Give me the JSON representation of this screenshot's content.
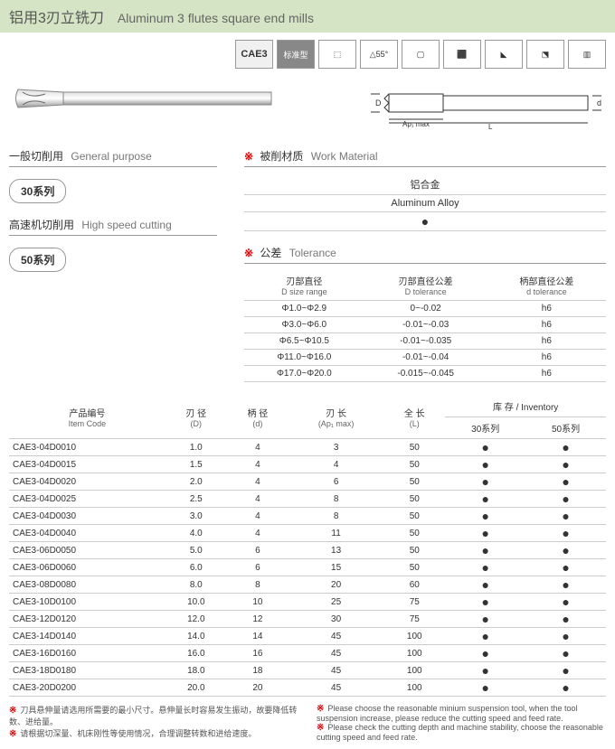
{
  "header": {
    "cn": "铝用3刃立铣刀",
    "en": "Aluminum 3 flutes square end mills"
  },
  "badges": [
    "CAE3",
    "标准型",
    "⬚",
    "△55°",
    "▢",
    "⬛",
    "◣",
    "⬔",
    "▥"
  ],
  "workMaterial": {
    "titleCn": "被削材质",
    "titleEn": "Work Material",
    "matCn": "铝合金",
    "matEn": "Aluminum Alloy"
  },
  "purpose": {
    "gpCn": "一般切削用",
    "gpEn": "General purpose",
    "gpSeries": "30系列",
    "hsCn": "高速机切削用",
    "hsEn": "High speed cutting",
    "hsSeries": "50系列"
  },
  "tolerance": {
    "titleCn": "公差",
    "titleEn": "Tolerance",
    "h1Cn": "刃部直径",
    "h1En": "D size range",
    "h2Cn": "刃部直径公差",
    "h2En": "D tolerance",
    "h3Cn": "柄部直径公差",
    "h3En": "d tolerance",
    "rows": [
      [
        "Φ1.0~Φ2.9",
        "0~-0.02",
        "h6"
      ],
      [
        "Φ3.0~Φ6.0",
        "-0.01~-0.03",
        "h6"
      ],
      [
        "Φ6.5~Φ10.5",
        "-0.01~-0.035",
        "h6"
      ],
      [
        "Φ11.0~Φ16.0",
        "-0.01~-0.04",
        "h6"
      ],
      [
        "Φ17.0~Φ20.0",
        "-0.015~-0.045",
        "h6"
      ]
    ]
  },
  "mainTable": {
    "h": {
      "codeCn": "产品编号",
      "codeEn": "Item Code",
      "dCn": "刃 径",
      "dEn": "(D)",
      "d2Cn": "柄 径",
      "d2En": "(d)",
      "apCn": "刃 长",
      "apEn": "(Ap₁ max)",
      "lCn": "全 长",
      "lEn": "(L)",
      "invCn": "库 存",
      "invEn": "Inventory",
      "s30": "30系列",
      "s50": "50系列"
    },
    "rows": [
      [
        "CAE3-04D0010",
        "1.0",
        "4",
        "3",
        "50",
        "●",
        "●"
      ],
      [
        "CAE3-04D0015",
        "1.5",
        "4",
        "4",
        "50",
        "●",
        "●"
      ],
      [
        "CAE3-04D0020",
        "2.0",
        "4",
        "6",
        "50",
        "●",
        "●"
      ],
      [
        "CAE3-04D0025",
        "2.5",
        "4",
        "8",
        "50",
        "●",
        "●"
      ],
      [
        "CAE3-04D0030",
        "3.0",
        "4",
        "8",
        "50",
        "●",
        "●"
      ],
      [
        "CAE3-04D0040",
        "4.0",
        "4",
        "11",
        "50",
        "●",
        "●"
      ],
      [
        "CAE3-06D0050",
        "5.0",
        "6",
        "13",
        "50",
        "●",
        "●"
      ],
      [
        "CAE3-06D0060",
        "6.0",
        "6",
        "15",
        "50",
        "●",
        "●"
      ],
      [
        "CAE3-08D0080",
        "8.0",
        "8",
        "20",
        "60",
        "●",
        "●"
      ],
      [
        "CAE3-10D0100",
        "10.0",
        "10",
        "25",
        "75",
        "●",
        "●"
      ],
      [
        "CAE3-12D0120",
        "12.0",
        "12",
        "30",
        "75",
        "●",
        "●"
      ],
      [
        "CAE3-14D0140",
        "14.0",
        "14",
        "45",
        "100",
        "●",
        "●"
      ],
      [
        "CAE3-16D0160",
        "16.0",
        "16",
        "45",
        "100",
        "●",
        "●"
      ],
      [
        "CAE3-18D0180",
        "18.0",
        "18",
        "45",
        "100",
        "●",
        "●"
      ],
      [
        "CAE3-20D0200",
        "20.0",
        "20",
        "45",
        "100",
        "●",
        "●"
      ]
    ]
  },
  "footer": {
    "cn1": "刀具悬伸量请选用所需要的最小尺寸。悬伸量长时容易发生振动，故要降低转数、进给量。",
    "cn2": "请根据切深量、机床刚性等使用情况，合理调整转数和进给速度。",
    "en1": "Please choose the reasonable minium suspension tool, when the tool suspension increase, please reduce the cutting speed and feed rate.",
    "en2": "Please check the cutting depth and machine stability, choose the reasonable cutting speed and feed rate."
  }
}
